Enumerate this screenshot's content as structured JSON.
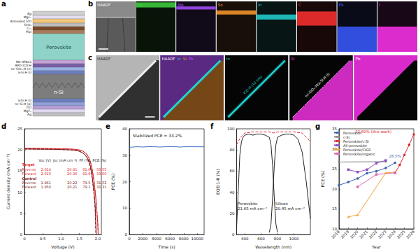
{
  "panel_labels": [
    "a",
    "b",
    "c",
    "d",
    "e",
    "f",
    "g"
  ],
  "device_stack": {
    "layers": [
      {
        "label": "Ag",
        "color": "#cfcfcf"
      },
      {
        "label": "MgFₓ",
        "color": "#e6def0"
      },
      {
        "label": "Annealed IZO",
        "color": "#f2c879"
      },
      {
        "label": "SnO₂",
        "color": "#bdbdbd"
      },
      {
        "label": "C₆₀",
        "color": "#7a4a2a"
      },
      {
        "label": "PipI",
        "color": "#a87b58"
      },
      {
        "label": "Perovskite",
        "color": "#8fd3c8"
      },
      {
        "label": "Me-4PACz",
        "color": "#c7a0d8"
      },
      {
        "label": "RPD ICO:H",
        "color": "#7b5ea7"
      },
      {
        "label": "nc-SiOₓ:H (n)",
        "color": "#9ab0e0"
      },
      {
        "label": "a-Si:H (i)",
        "color": "#6c7fc0"
      },
      {
        "label": "n-Si",
        "color": "#7d7d7d"
      },
      {
        "label": "a-Si:H (i)",
        "color": "#6c7fc0"
      },
      {
        "label": "nc-Si:H (p)",
        "color": "#8fa0d8"
      },
      {
        "label": "ITO",
        "color": "#b9a0d8"
      },
      {
        "label": "MgFₓ",
        "color": "#e0d8ee"
      },
      {
        "label": "Ag",
        "color": "#c0c0c0"
      }
    ]
  },
  "eds_maps_b": {
    "maps": [
      {
        "label": "HAADF",
        "color": "#ffffff"
      },
      {
        "label": "Ag",
        "color": "#3fd13f"
      },
      {
        "label": "Mg",
        "color": "#a64dff"
      },
      {
        "label": "Sn",
        "color": "#ff9a2e"
      },
      {
        "label": "In",
        "color": "#22d3d3"
      },
      {
        "label": "C",
        "color": "#ff3030"
      },
      {
        "label": "Pb",
        "color": "#3a5bff"
      },
      {
        "label": "I",
        "color": "#ff33ee"
      }
    ]
  },
  "eds_maps_c": {
    "maps": [
      {
        "label": "HAADF",
        "color": "#ffffff"
      },
      {
        "overlay": [
          {
            "label": "HAADF",
            "color": "#ffffff"
          },
          {
            "label": "In",
            "color": "#22d3d3"
          },
          {
            "label": "Si",
            "color": "#ff9a2e"
          },
          {
            "label": "Pb",
            "color": "#b04dff"
          }
        ]
      },
      {
        "label": "In",
        "color": "#22d3d3",
        "annotation": "ICO:H (10 nm)"
      },
      {
        "label": "Si",
        "color": "#ff33ee",
        "annotation": "nc-SiOₓ:H/a-Si:H (i)"
      },
      {
        "label": "Pb",
        "color": "#ff33ee"
      }
    ]
  },
  "chart_data": [
    {
      "type": "line",
      "x_label": "Voltage (V)",
      "y_label": "Current density (mA cm⁻²)",
      "xlim": [
        0,
        2.1
      ],
      "xticks": [
        0,
        0.5,
        {
          "value": 1,
          "label": "1.0"
        },
        1.5,
        {
          "value": 2,
          "label": "2.0"
        }
      ],
      "ylim": [
        0,
        25
      ],
      "yticks": [
        0,
        5,
        10,
        15,
        20,
        25
      ],
      "grid": false,
      "series": [
        {
          "color": "#e0262b",
          "line_style": "solid",
          "x": [
            0,
            0.2,
            0.4,
            0.6,
            0.8,
            1.0,
            1.2,
            1.4,
            1.5,
            1.6,
            1.7,
            1.75,
            1.8,
            1.85,
            1.9,
            1.95,
            2.0,
            2.014
          ],
          "values": [
            20.41,
            20.4,
            20.38,
            20.36,
            20.33,
            20.3,
            20.25,
            20.15,
            20.0,
            19.7,
            19.0,
            18.3,
            17.2,
            15.4,
            12.6,
            8.6,
            3.0,
            0
          ]
        },
        {
          "color": "#e0262b",
          "line_style": "dashed",
          "x": [
            0,
            0.2,
            0.4,
            0.6,
            0.8,
            1.0,
            1.2,
            1.4,
            1.5,
            1.6,
            1.7,
            1.75,
            1.8,
            1.85,
            1.9,
            1.95,
            2.0,
            2.015
          ],
          "values": [
            20.36,
            20.35,
            20.33,
            20.31,
            20.28,
            20.25,
            20.2,
            20.1,
            19.95,
            19.7,
            19.05,
            18.4,
            17.3,
            15.5,
            12.7,
            8.7,
            3.1,
            0
          ]
        },
        {
          "color": "#7b1c1c",
          "line_style": "solid",
          "x": [
            0,
            0.2,
            0.4,
            0.6,
            0.8,
            1.0,
            1.2,
            1.4,
            1.5,
            1.6,
            1.7,
            1.75,
            1.8,
            1.85,
            1.9,
            1.93,
            1.961
          ],
          "values": [
            20.22,
            20.21,
            20.19,
            20.17,
            20.14,
            20.1,
            20.04,
            19.9,
            19.7,
            19.3,
            18.4,
            17.6,
            16.2,
            13.8,
            10.2,
            7.2,
            0
          ]
        },
        {
          "color": "#7b1c1c",
          "line_style": "dashed",
          "x": [
            0,
            0.2,
            0.4,
            0.6,
            0.8,
            1.0,
            1.2,
            1.4,
            1.5,
            1.6,
            1.7,
            1.75,
            1.8,
            1.85,
            1.9,
            1.93,
            1.95
          ],
          "values": [
            20.21,
            20.2,
            20.18,
            20.16,
            20.13,
            20.09,
            20.03,
            19.88,
            19.68,
            19.25,
            18.3,
            17.4,
            15.9,
            13.3,
            9.5,
            6.0,
            0
          ]
        }
      ],
      "table": {
        "columns": [
          "Voc (V)",
          "Jsc (mA cm⁻²)",
          "FF (%)",
          "PCE (%)"
        ],
        "groups": [
          {
            "name": "Target",
            "color": "#e0262b",
            "rows": [
              {
                "scan": "Reverse",
                "cells": [
                  "2.014",
                  "20.41",
                  "81.6",
                  "33.55"
                ]
              },
              {
                "scan": "Forward",
                "cells": [
                  "2.015",
                  "20.36",
                  "81.9",
                  "33.60"
                ]
              }
            ]
          },
          {
            "name": "Control",
            "color": "#7b1c1c",
            "rows": [
              {
                "scan": "Reverse",
                "cells": [
                  "1.961",
                  "20.22",
                  "79.5",
                  "31.52"
                ]
              },
              {
                "scan": "Forward",
                "cells": [
                  "1.950",
                  "20.21",
                  "79.1",
                  "31.31"
                ]
              }
            ]
          }
        ]
      }
    },
    {
      "type": "line",
      "x_label": "Time (s)",
      "y_label": "PCE (%)",
      "xlim": [
        0,
        11000
      ],
      "xticks": [
        0,
        2000,
        4000,
        6000,
        8000,
        10000
      ],
      "ylim": [
        0,
        40
      ],
      "yticks": [
        0,
        10,
        20,
        30,
        40
      ],
      "grid": false,
      "annotations": [
        "Stabilized PCE = 33.2%"
      ],
      "series": [
        {
          "color": "#3a6fc4",
          "line_style": "solid",
          "x": [
            0,
            500,
            1000,
            1500,
            2000,
            2500,
            3000,
            3500,
            4000,
            4500,
            5000,
            5500,
            6000,
            6500,
            7000,
            7500,
            8000,
            8500,
            9000,
            9500,
            10000,
            10500,
            11000
          ],
          "values": [
            33.0,
            33.1,
            33.2,
            33.2,
            33.1,
            33.2,
            33.3,
            33.2,
            33.2,
            33.1,
            33.2,
            33.2,
            33.3,
            33.2,
            33.2,
            33.1,
            33.2,
            33.2,
            33.3,
            33.2,
            33.2,
            33.2,
            33.2
          ]
        }
      ]
    },
    {
      "type": "line",
      "x_label": "Wavelength (nm)",
      "y_label": "EQE/1-R (%)",
      "xlim": [
        300,
        1200
      ],
      "xticks": [
        400,
        600,
        800,
        1000
      ],
      "ylim": [
        0,
        100
      ],
      "yticks": [
        0,
        20,
        40,
        60,
        80,
        100
      ],
      "grid": false,
      "annotations": [
        [
          "Perovskite",
          "21.65 mA cm⁻²"
        ],
        [
          "Silicon",
          "20.45 mA cm⁻²"
        ]
      ],
      "series": [
        {
          "color": "#222222",
          "line_style": "solid",
          "x": [
            300,
            320,
            340,
            360,
            380,
            400,
            450,
            500,
            550,
            600,
            650,
            700,
            720,
            740,
            760,
            780,
            800
          ],
          "values": [
            5,
            40,
            75,
            88,
            92,
            94,
            95,
            94,
            95,
            95,
            94,
            92,
            85,
            65,
            35,
            10,
            2
          ]
        },
        {
          "color": "#222222",
          "line_style": "solid",
          "x": [
            700,
            720,
            740,
            760,
            780,
            800,
            850,
            900,
            950,
            1000,
            1050,
            1100,
            1150,
            1200
          ],
          "values": [
            2,
            10,
            35,
            65,
            85,
            92,
            94,
            95,
            95,
            94,
            90,
            78,
            50,
            15
          ]
        },
        {
          "color": "#e0262b",
          "line_style": "dashed",
          "x": [
            300,
            350,
            400,
            500,
            600,
            700,
            750,
            800,
            900,
            1000,
            1100,
            1150,
            1200
          ],
          "values": [
            85,
            92,
            96,
            97,
            97,
            97,
            96,
            97,
            97,
            97,
            96,
            92,
            88
          ]
        }
      ]
    },
    {
      "type": "line",
      "x_label": "Year",
      "y_label": "PCE (%)",
      "xlim": [
        2018,
        2026
      ],
      "xticks": [
        2018,
        2019,
        2020,
        2021,
        2022,
        2023,
        2024,
        2025,
        2026
      ],
      "ylim": [
        10,
        35
      ],
      "yticks": [
        10,
        15,
        20,
        25,
        30,
        35
      ],
      "grid": false,
      "legend": "upper left",
      "series": [
        {
          "name": "Perovskite",
          "color": "#3b5fa8",
          "marker": "circle",
          "x": [
            2018,
            2019,
            2020,
            2021,
            2022,
            2023,
            2024
          ],
          "values": [
            20.9,
            21.7,
            22.6,
            23.9,
            24.4,
            25.2,
            26.5
          ],
          "value_labels": [
            null,
            null,
            null,
            null,
            null,
            null,
            "26.5%"
          ]
        },
        {
          "name": "c-Si",
          "color": "#7f7f7f",
          "marker": "diamond",
          "x": [
            2018,
            2023
          ],
          "values": [
            26.7,
            26.8
          ]
        },
        {
          "name": "Perovskite/c-Si",
          "color": "#e0262b",
          "marker": "circle",
          "x": [
            2024,
            2024.5,
            2025,
            2025.5,
            2026
          ],
          "values": [
            24.0,
            26.0,
            28.5,
            31.0,
            33.6
          ],
          "value_labels": [
            null,
            null,
            null,
            null,
            "33.60% (this work)"
          ]
        },
        {
          "name": "All-perovskite",
          "color": "#8a4fbf",
          "marker": "square",
          "x": [
            2019,
            2020,
            2021,
            2022,
            2023
          ],
          "values": [
            24.8,
            24.2,
            24.8,
            26.4,
            27.1
          ]
        },
        {
          "name": "Perovskite/CIGS",
          "color": "#f0a030",
          "marker": "triangle",
          "x": [
            2019,
            2020,
            2023,
            2024
          ],
          "values": [
            13.0,
            13.5,
            24.0,
            24.2
          ]
        },
        {
          "name": "Perovskite/organic",
          "color": "#e066b0",
          "marker": "square",
          "x": [
            2020,
            2022,
            2024
          ],
          "values": [
            20.5,
            23.6,
            24.0
          ]
        }
      ]
    }
  ]
}
